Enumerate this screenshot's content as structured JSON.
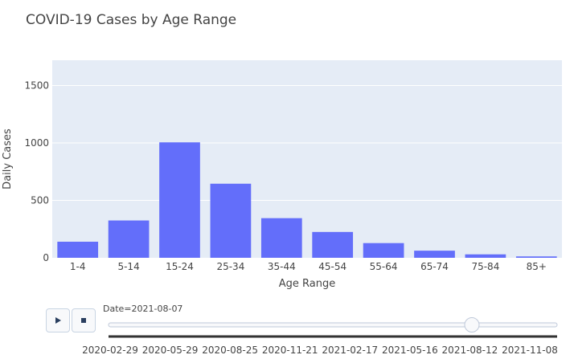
{
  "chart_data": {
    "type": "bar",
    "title": "COVID-19 Cases by Age Range",
    "xlabel": "Age Range",
    "ylabel": "Daily Cases",
    "categories": [
      "1-4",
      "5-14",
      "15-24",
      "25-34",
      "35-44",
      "45-54",
      "55-64",
      "65-74",
      "75-84",
      "85+"
    ],
    "values": [
      140,
      325,
      1005,
      645,
      345,
      225,
      128,
      62,
      30,
      12
    ],
    "ylim": [
      0,
      1720
    ],
    "yticks": [
      0,
      500,
      1000,
      1500
    ],
    "ytick_labels": [
      "0",
      "500",
      "1000",
      "1500"
    ],
    "grid": true,
    "bar_color": "#636efa",
    "plot_bg": "#e5ecf6"
  },
  "animation": {
    "current_label": "Date=2021-08-07",
    "frame_labels": [
      "2020-02-29",
      "2020-05-29",
      "2020-08-25",
      "2020-11-21",
      "2021-02-17",
      "2021-05-16",
      "2021-08-12",
      "2021-11-08"
    ],
    "slider_position": 0.81,
    "play_icon": "play-icon",
    "stop_icon": "stop-icon"
  }
}
